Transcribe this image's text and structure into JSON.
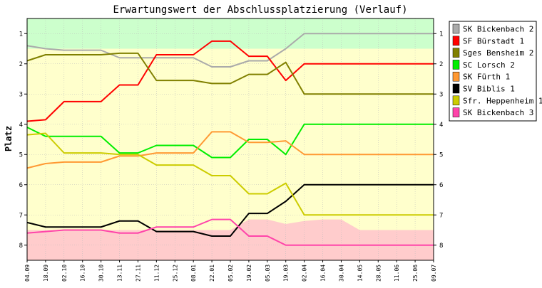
{
  "chart_data": {
    "type": "line",
    "title": "Erwartungswert der Abschlussplatzierung (Verlauf)",
    "ylabel": "Platz",
    "xlabel": "",
    "ylim": [
      8.5,
      0.5
    ],
    "y_ticks": [
      1,
      2,
      3,
      4,
      5,
      6,
      7,
      8
    ],
    "categories": [
      "04.09",
      "18.09",
      "02.10",
      "16.10",
      "30.10",
      "13.11",
      "27.11",
      "11.12",
      "25.12",
      "08.01",
      "22.01",
      "05.02",
      "19.02",
      "05.03",
      "19.03",
      "02.04",
      "16.04",
      "30.04",
      "14.05",
      "28.05",
      "11.06",
      "25.06",
      "09.07"
    ],
    "grid": true,
    "legend_position": "right",
    "background_zones": {
      "promotion_color": "#ccffcc",
      "middle_color": "#ffffcc",
      "relegation_color": "#ffcccc",
      "promotion_boundary": [
        1.5,
        1.5,
        1.5,
        1.5,
        1.5,
        1.5,
        1.5,
        1.5,
        1.5,
        1.5,
        1.5,
        1.5,
        1.5,
        1.5,
        1.5,
        1.5,
        1.5,
        1.5,
        1.5,
        1.5,
        1.5,
        1.5,
        1.5
      ],
      "relegation_boundary": [
        7.5,
        7.5,
        7.5,
        7.5,
        7.5,
        7.5,
        7.5,
        7.5,
        7.5,
        7.5,
        7.5,
        7.5,
        7.15,
        7.15,
        7.3,
        7.2,
        7.15,
        7.15,
        7.5,
        7.5,
        7.5,
        7.5,
        7.5
      ]
    },
    "series": [
      {
        "name": "SK Bickenbach 2",
        "color": "#aaaaaa",
        "values": [
          1.4,
          1.5,
          1.55,
          1.55,
          1.55,
          1.8,
          1.8,
          1.8,
          1.8,
          1.8,
          2.1,
          2.1,
          1.9,
          1.9,
          1.5,
          1.0,
          1.0,
          1.0,
          1.0,
          1.0,
          1.0,
          1.0,
          1.0
        ]
      },
      {
        "name": "SF Bürstadt 1",
        "color": "#ff0000",
        "values": [
          3.9,
          3.85,
          3.25,
          3.25,
          3.25,
          2.7,
          2.7,
          1.7,
          1.7,
          1.7,
          1.25,
          1.25,
          1.75,
          1.75,
          2.55,
          2.0,
          2.0,
          2.0,
          2.0,
          2.0,
          2.0,
          2.0,
          2.0
        ]
      },
      {
        "name": "Sges Bensheim 2",
        "color": "#808000",
        "values": [
          1.9,
          1.7,
          1.7,
          1.7,
          1.7,
          1.65,
          1.65,
          2.55,
          2.55,
          2.55,
          2.65,
          2.65,
          2.35,
          2.35,
          1.95,
          3.0,
          3.0,
          3.0,
          3.0,
          3.0,
          3.0,
          3.0,
          3.0
        ]
      },
      {
        "name": "SC Lorsch 2",
        "color": "#00ee00",
        "values": [
          4.1,
          4.4,
          4.4,
          4.4,
          4.4,
          4.95,
          4.95,
          4.7,
          4.7,
          4.7,
          5.1,
          5.1,
          4.5,
          4.5,
          5.0,
          4.0,
          4.0,
          4.0,
          4.0,
          4.0,
          4.0,
          4.0,
          4.0
        ]
      },
      {
        "name": "SK Fürth 1",
        "color": "#ff9933",
        "values": [
          5.45,
          5.3,
          5.25,
          5.25,
          5.25,
          5.05,
          5.05,
          4.95,
          4.95,
          4.95,
          4.25,
          4.25,
          4.6,
          4.6,
          4.55,
          5.0,
          5.0,
          5.0,
          5.0,
          5.0,
          5.0,
          5.0,
          5.0
        ]
      },
      {
        "name": "SV Biblis 1",
        "color": "#000000",
        "values": [
          7.25,
          7.4,
          7.4,
          7.4,
          7.4,
          7.2,
          7.2,
          7.55,
          7.55,
          7.55,
          7.7,
          7.7,
          6.95,
          6.95,
          6.55,
          6.0,
          6.0,
          6.0,
          6.0,
          6.0,
          6.0,
          6.0,
          6.0
        ]
      },
      {
        "name": "Sfr. Heppenheim 1",
        "color": "#cccc00",
        "values": [
          4.35,
          4.3,
          4.95,
          4.95,
          4.95,
          5.0,
          5.0,
          5.35,
          5.35,
          5.35,
          5.7,
          5.7,
          6.3,
          6.3,
          5.95,
          7.0,
          7.0,
          7.0,
          7.0,
          7.0,
          7.0,
          7.0,
          7.0
        ]
      },
      {
        "name": "SK Bickenbach 3",
        "color": "#ff44aa",
        "values": [
          7.6,
          7.55,
          7.5,
          7.5,
          7.5,
          7.6,
          7.6,
          7.4,
          7.4,
          7.4,
          7.15,
          7.15,
          7.7,
          7.7,
          8.0,
          8.0,
          8.0,
          8.0,
          8.0,
          8.0,
          8.0,
          8.0,
          8.0
        ]
      }
    ]
  }
}
